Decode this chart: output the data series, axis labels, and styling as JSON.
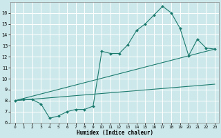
{
  "xlabel": "Humidex (Indice chaleur)",
  "bg_color": "#cde8ea",
  "line_color": "#1a7a6e",
  "grid_color": "#ffffff",
  "line1_x": [
    0,
    1,
    2,
    3,
    4,
    5,
    6,
    7,
    8,
    9,
    10,
    11,
    12,
    13,
    14,
    15,
    16,
    17,
    18,
    19,
    20,
    21,
    22,
    23
  ],
  "line1_y": [
    8.0,
    8.1,
    8.1,
    7.7,
    6.4,
    6.6,
    7.0,
    7.2,
    7.2,
    7.5,
    12.5,
    12.3,
    12.3,
    13.1,
    14.4,
    15.0,
    15.8,
    16.6,
    16.0,
    14.6,
    12.1,
    13.6,
    12.8,
    12.7
  ],
  "line2_x": [
    0,
    23
  ],
  "line2_y": [
    8.0,
    9.5
  ],
  "line3_x": [
    0,
    23
  ],
  "line3_y": [
    8.0,
    12.7
  ],
  "xlim": [
    -0.5,
    23.5
  ],
  "ylim": [
    6,
    17
  ],
  "xticks": [
    0,
    1,
    2,
    3,
    4,
    5,
    6,
    7,
    8,
    9,
    10,
    11,
    12,
    13,
    14,
    15,
    16,
    17,
    18,
    19,
    20,
    21,
    22,
    23
  ],
  "yticks": [
    6,
    7,
    8,
    9,
    10,
    11,
    12,
    13,
    14,
    15,
    16
  ]
}
